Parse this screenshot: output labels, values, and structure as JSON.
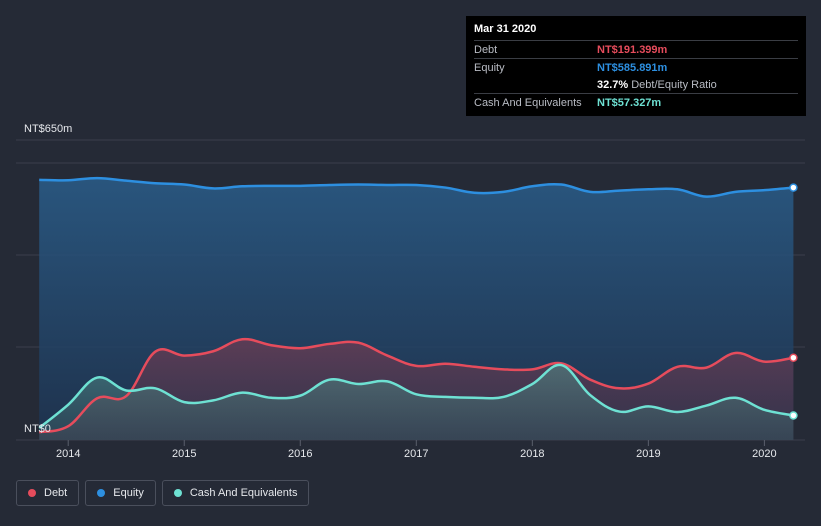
{
  "chart_data": {
    "type": "area",
    "ylim": [
      0,
      650
    ],
    "y_tick_labels": [
      "NT$650m",
      "NT$0"
    ],
    "x_ticks": [
      2014,
      2015,
      2016,
      2017,
      2018,
      2019,
      2020
    ],
    "x_tick_labels": [
      "2014",
      "2015",
      "2016",
      "2017",
      "2018",
      "2019",
      "2020"
    ],
    "x_range": [
      2013.55,
      2020.35
    ],
    "series": [
      {
        "name": "Equity",
        "color": "#2d8fe0",
        "x": [
          2013.75,
          2014.0,
          2014.25,
          2014.5,
          2014.75,
          2015.0,
          2015.25,
          2015.5,
          2015.75,
          2016.0,
          2016.25,
          2016.5,
          2016.75,
          2017.0,
          2017.25,
          2017.5,
          2017.75,
          2018.0,
          2018.25,
          2018.5,
          2018.75,
          2019.0,
          2019.25,
          2019.5,
          2019.75,
          2020.0,
          2020.25
        ],
        "values": [
          604,
          603,
          608,
          602,
          596,
          593,
          584,
          589,
          590,
          590,
          592,
          593,
          592,
          592,
          586,
          574,
          576,
          589,
          593,
          576,
          579,
          582,
          582,
          565,
          576,
          580,
          586
        ]
      },
      {
        "name": "Debt",
        "color": "#e64c5c",
        "x": [
          2013.75,
          2014.0,
          2014.25,
          2014.5,
          2014.75,
          2015.0,
          2015.25,
          2015.5,
          2015.75,
          2016.0,
          2016.25,
          2016.5,
          2016.75,
          2017.0,
          2017.25,
          2017.5,
          2017.75,
          2018.0,
          2018.25,
          2018.5,
          2018.75,
          2019.0,
          2019.25,
          2019.5,
          2019.75,
          2020.0,
          2020.25
        ],
        "values": [
          18,
          32,
          97,
          102,
          205,
          196,
          206,
          234,
          220,
          213,
          223,
          226,
          196,
          172,
          177,
          170,
          164,
          164,
          178,
          140,
          120,
          131,
          170,
          168,
          202,
          182,
          191
        ]
      },
      {
        "name": "Cash And Equivalents",
        "color": "#6ee1d3",
        "x": [
          2013.75,
          2014.0,
          2014.25,
          2014.5,
          2014.75,
          2015.0,
          2015.25,
          2015.5,
          2015.75,
          2016.0,
          2016.25,
          2016.5,
          2016.75,
          2017.0,
          2017.25,
          2017.5,
          2017.75,
          2018.0,
          2018.25,
          2018.5,
          2018.75,
          2019.0,
          2019.25,
          2019.5,
          2019.75,
          2020.0,
          2020.25
        ],
        "values": [
          28,
          82,
          145,
          115,
          120,
          88,
          92,
          110,
          98,
          103,
          140,
          130,
          136,
          106,
          100,
          98,
          100,
          130,
          174,
          104,
          66,
          78,
          65,
          80,
          98,
          70,
          57
        ]
      }
    ]
  },
  "tooltip": {
    "date": "Mar 31 2020",
    "rows": [
      {
        "label": "Debt",
        "value": "NT$191.399m",
        "color": "#e64c5c"
      },
      {
        "label": "Equity",
        "value": "NT$585.891m",
        "color": "#2d8fe0"
      },
      {
        "label": "",
        "value": "32.7%",
        "sub": "Debt/Equity Ratio",
        "color": "#ffffff"
      },
      {
        "label": "Cash And Equivalents",
        "value": "NT$57.327m",
        "color": "#6ee1d3"
      }
    ]
  },
  "legend": [
    {
      "label": "Debt",
      "color": "#e64c5c"
    },
    {
      "label": "Equity",
      "color": "#2d8fe0"
    },
    {
      "label": "Cash And Equivalents",
      "color": "#6ee1d3"
    }
  ]
}
